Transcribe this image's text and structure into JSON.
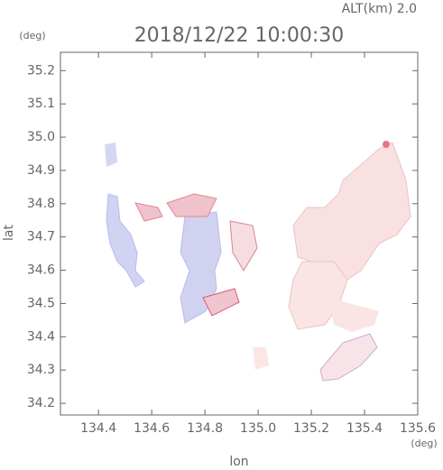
{
  "chart_data": {
    "type": "map",
    "title": "2018/12/22 10:00:30",
    "subtitle": "ALT(km)  2.0",
    "y_unit": "(deg)",
    "x_unit": "(deg)",
    "ylabel": "lat",
    "xlabel": "lon",
    "xlim": [
      134.257,
      135.6
    ],
    "ylim": [
      34.165,
      35.255
    ],
    "xticks": [
      134.4,
      134.6,
      134.8,
      {
        "value": 135.0,
        "label": "135.0"
      },
      135.2,
      135.4,
      135.6
    ],
    "yticks": [
      34.2,
      34.3,
      34.4,
      34.5,
      34.6,
      34.7,
      34.8,
      34.9,
      {
        "value": 35.0,
        "label": "35.0"
      },
      35.1,
      35.2
    ]
  }
}
